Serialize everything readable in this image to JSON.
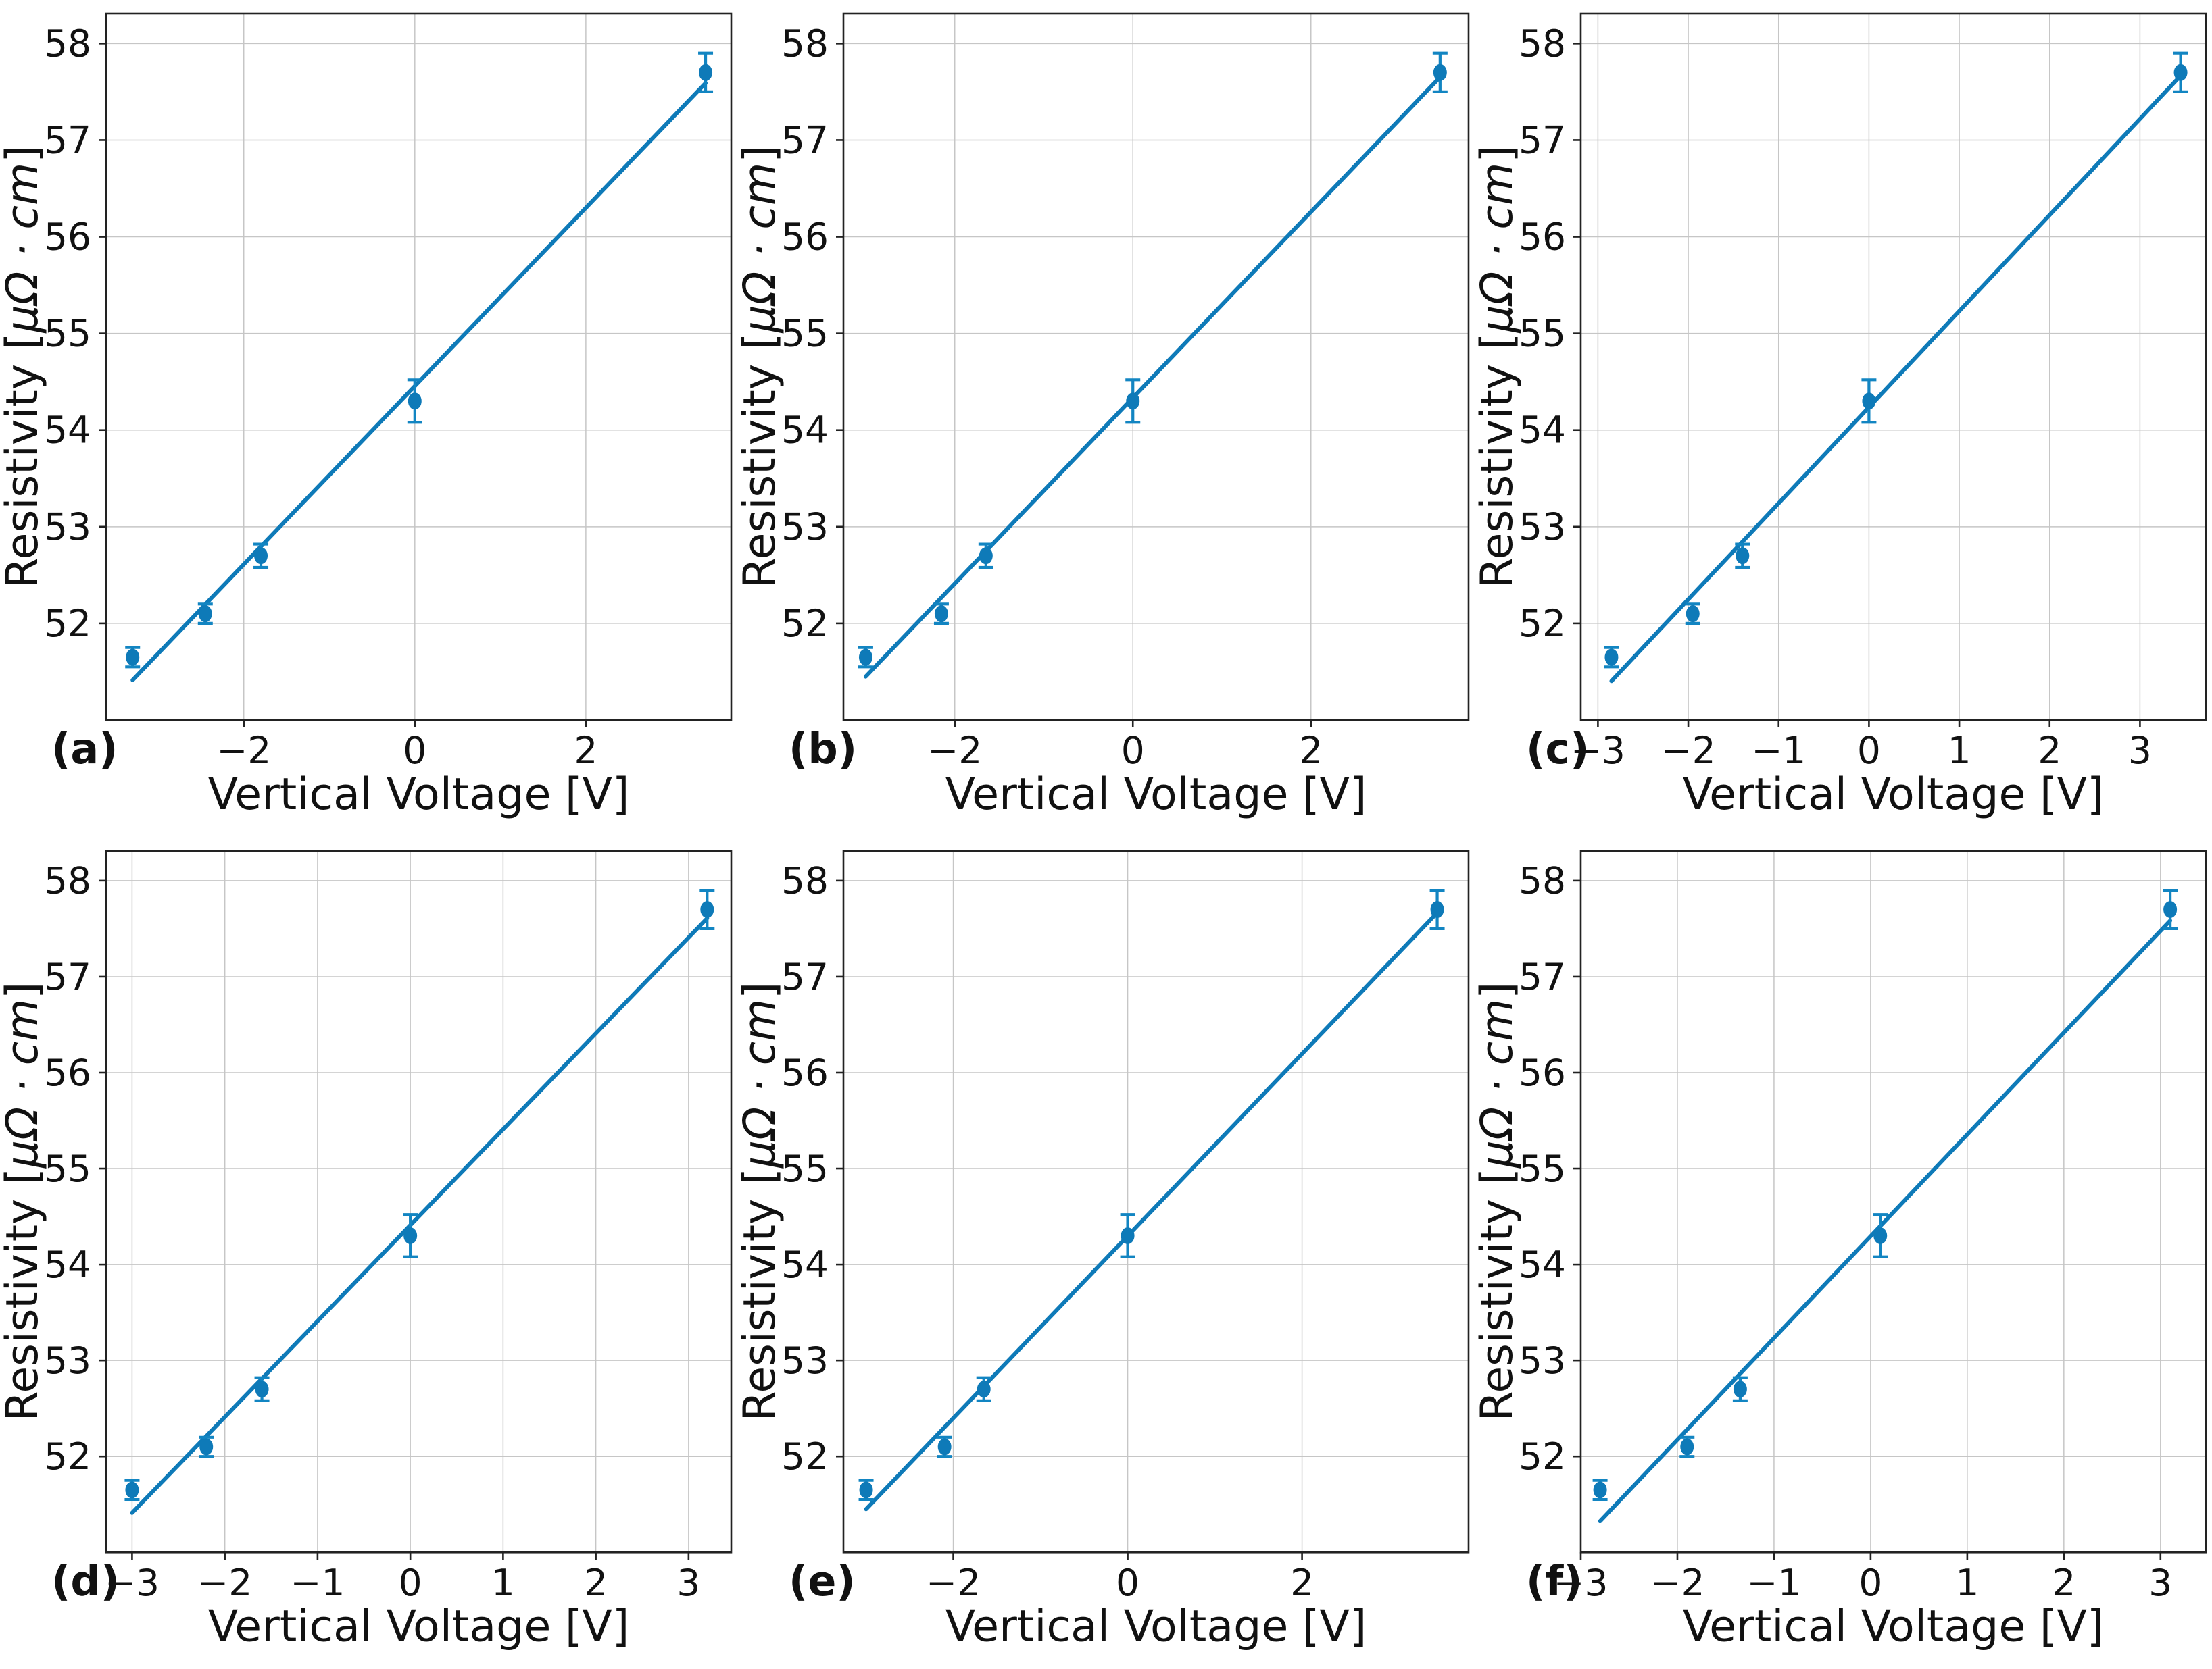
{
  "style": {
    "background": "#ffffff",
    "line_color": "#0e7ab8",
    "marker_color": "#0e7ab8",
    "errorbar_color": "#1285c2",
    "grid_color": "#c6c6c6",
    "axis_color": "#222222",
    "text_color": "#111111"
  },
  "chart_data": [
    {
      "type": "scatter",
      "panel_label": "(a)",
      "xlabel": "Vertical Voltage [V]",
      "ylabel": "Resistivity [μΩ · cm]",
      "ylabel_parts": {
        "prefix": "Resistivity [",
        "math": "μΩ · cm",
        "suffix": "]"
      },
      "x": [
        -3.3,
        -2.45,
        -1.8,
        0.0,
        3.4
      ],
      "y": [
        51.65,
        52.1,
        52.7,
        54.3,
        57.7
      ],
      "yerr": [
        0.1,
        0.1,
        0.12,
        0.22,
        0.2
      ],
      "fit": "linear-least-squares",
      "xlim": [
        -3.61,
        3.7
      ],
      "ylim": [
        51.0,
        58.31
      ],
      "xticks": [
        -2,
        0,
        2
      ],
      "yticks": [
        52,
        53,
        54,
        55,
        56,
        57,
        58
      ],
      "grid": true,
      "legend": "none"
    },
    {
      "type": "scatter",
      "panel_label": "(b)",
      "xlabel": "Vertical Voltage [V]",
      "ylabel": "Resistivity [μΩ · cm]",
      "ylabel_parts": {
        "prefix": "Resistivity [",
        "math": "μΩ · cm",
        "suffix": "]"
      },
      "x": [
        -3.0,
        -2.15,
        -1.65,
        0.0,
        3.45
      ],
      "y": [
        51.65,
        52.1,
        52.7,
        54.3,
        57.7
      ],
      "yerr": [
        0.1,
        0.1,
        0.12,
        0.22,
        0.2
      ],
      "fit": "linear-least-squares",
      "xlim": [
        -3.25,
        3.77
      ],
      "ylim": [
        51.0,
        58.31
      ],
      "xticks": [
        -2,
        0,
        2
      ],
      "yticks": [
        52,
        53,
        54,
        55,
        56,
        57,
        58
      ],
      "grid": true,
      "legend": "none"
    },
    {
      "type": "scatter",
      "panel_label": "(c)",
      "xlabel": "Vertical Voltage [V]",
      "ylabel": "Resistivity [μΩ · cm]",
      "ylabel_parts": {
        "prefix": "Resistivity [",
        "math": "μΩ · cm",
        "suffix": "]"
      },
      "x": [
        -2.85,
        -1.95,
        -1.4,
        0.0,
        3.45
      ],
      "y": [
        51.65,
        52.1,
        52.7,
        54.3,
        57.7
      ],
      "yerr": [
        0.1,
        0.1,
        0.12,
        0.22,
        0.2
      ],
      "fit": "linear-least-squares",
      "xlim": [
        -3.19,
        3.73
      ],
      "ylim": [
        51.0,
        58.31
      ],
      "xticks": [
        -3,
        -2,
        -1,
        0,
        1,
        2,
        3
      ],
      "yticks": [
        52,
        53,
        54,
        55,
        56,
        57,
        58
      ],
      "grid": true,
      "legend": "none"
    },
    {
      "type": "scatter",
      "panel_label": "(d)",
      "xlabel": "Vertical Voltage [V]",
      "ylabel": "Resistivity [μΩ · cm]",
      "ylabel_parts": {
        "prefix": "Resistivity [",
        "math": "μΩ · cm",
        "suffix": "]"
      },
      "x": [
        -3.0,
        -2.2,
        -1.6,
        0.0,
        3.2
      ],
      "y": [
        51.65,
        52.1,
        52.7,
        54.3,
        57.7
      ],
      "yerr": [
        0.1,
        0.1,
        0.12,
        0.22,
        0.2
      ],
      "fit": "linear-least-squares",
      "xlim": [
        -3.28,
        3.46
      ],
      "ylim": [
        51.0,
        58.31
      ],
      "xticks": [
        -3,
        -2,
        -1,
        0,
        1,
        2,
        3
      ],
      "yticks": [
        52,
        53,
        54,
        55,
        56,
        57,
        58
      ],
      "grid": true,
      "legend": "none"
    },
    {
      "type": "scatter",
      "panel_label": "(e)",
      "xlabel": "Vertical Voltage [V]",
      "ylabel": "Resistivity [μΩ · cm]",
      "ylabel_parts": {
        "prefix": "Resistivity [",
        "math": "μΩ · cm",
        "suffix": "]"
      },
      "x": [
        -3.0,
        -2.1,
        -1.65,
        0.0,
        3.55
      ],
      "y": [
        51.65,
        52.1,
        52.7,
        54.3,
        57.7
      ],
      "yerr": [
        0.1,
        0.1,
        0.12,
        0.22,
        0.2
      ],
      "fit": "linear-least-squares",
      "xlim": [
        -3.26,
        3.91
      ],
      "ylim": [
        51.0,
        58.31
      ],
      "xticks": [
        -2,
        0,
        2
      ],
      "yticks": [
        52,
        53,
        54,
        55,
        56,
        57,
        58
      ],
      "grid": true,
      "legend": "none"
    },
    {
      "type": "scatter",
      "panel_label": "(f)",
      "xlabel": "Vertical Voltage [V]",
      "ylabel": "Resistivity [μΩ · cm]",
      "ylabel_parts": {
        "prefix": "Resistivity [",
        "math": "μΩ · cm",
        "suffix": "]"
      },
      "x": [
        -2.8,
        -1.9,
        -1.35,
        0.1,
        3.1
      ],
      "y": [
        51.65,
        52.1,
        52.7,
        54.3,
        57.7
      ],
      "yerr": [
        0.1,
        0.1,
        0.12,
        0.22,
        0.2
      ],
      "fit": "linear-least-squares",
      "xlim": [
        -3.0,
        3.47
      ],
      "ylim": [
        51.0,
        58.31
      ],
      "xticks": [
        -3,
        -2,
        -1,
        0,
        1,
        2,
        3
      ],
      "yticks": [
        52,
        53,
        54,
        55,
        56,
        57,
        58
      ],
      "grid": true,
      "legend": "none"
    }
  ]
}
